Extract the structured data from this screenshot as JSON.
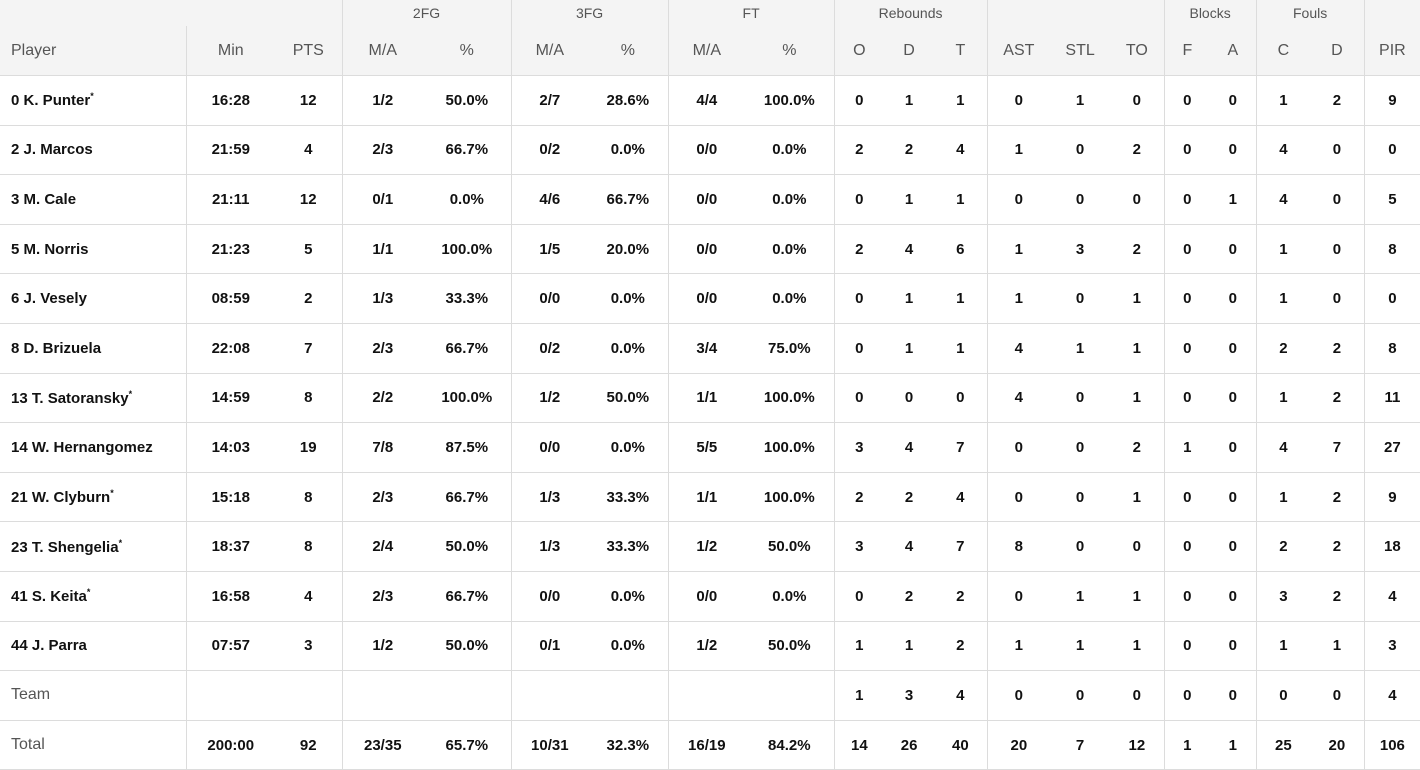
{
  "header": {
    "groups": [
      {
        "label": "",
        "span": 3
      },
      {
        "label": "2FG",
        "span": 2
      },
      {
        "label": "3FG",
        "span": 2
      },
      {
        "label": "FT",
        "span": 2
      },
      {
        "label": "Rebounds",
        "span": 3
      },
      {
        "label": "",
        "span": 3
      },
      {
        "label": "Blocks",
        "span": 2
      },
      {
        "label": "Fouls",
        "span": 2
      },
      {
        "label": "",
        "span": 1
      }
    ],
    "columns": [
      "Player",
      "Min",
      "PTS",
      "M/A",
      "%",
      "M/A",
      "%",
      "M/A",
      "%",
      "O",
      "D",
      "T",
      "AST",
      "STL",
      "TO",
      "F",
      "A",
      "C",
      "D",
      "PIR"
    ]
  },
  "rows": [
    {
      "number": "0",
      "name": "K. Punter",
      "starter": true,
      "stats": [
        "16:28",
        "12",
        "1/2",
        "50.0%",
        "2/7",
        "28.6%",
        "4/4",
        "100.0%",
        "0",
        "1",
        "1",
        "0",
        "1",
        "0",
        "0",
        "0",
        "1",
        "2",
        "9"
      ]
    },
    {
      "number": "2",
      "name": "J. Marcos",
      "starter": false,
      "stats": [
        "21:59",
        "4",
        "2/3",
        "66.7%",
        "0/2",
        "0.0%",
        "0/0",
        "0.0%",
        "2",
        "2",
        "4",
        "1",
        "0",
        "2",
        "0",
        "0",
        "4",
        "0",
        "0"
      ]
    },
    {
      "number": "3",
      "name": "M. Cale",
      "starter": false,
      "stats": [
        "21:11",
        "12",
        "0/1",
        "0.0%",
        "4/6",
        "66.7%",
        "0/0",
        "0.0%",
        "0",
        "1",
        "1",
        "0",
        "0",
        "0",
        "0",
        "1",
        "4",
        "0",
        "5"
      ]
    },
    {
      "number": "5",
      "name": "M. Norris",
      "starter": false,
      "stats": [
        "21:23",
        "5",
        "1/1",
        "100.0%",
        "1/5",
        "20.0%",
        "0/0",
        "0.0%",
        "2",
        "4",
        "6",
        "1",
        "3",
        "2",
        "0",
        "0",
        "1",
        "0",
        "8"
      ]
    },
    {
      "number": "6",
      "name": "J. Vesely",
      "starter": false,
      "stats": [
        "08:59",
        "2",
        "1/3",
        "33.3%",
        "0/0",
        "0.0%",
        "0/0",
        "0.0%",
        "0",
        "1",
        "1",
        "1",
        "0",
        "1",
        "0",
        "0",
        "1",
        "0",
        "0"
      ]
    },
    {
      "number": "8",
      "name": "D. Brizuela",
      "starter": false,
      "stats": [
        "22:08",
        "7",
        "2/3",
        "66.7%",
        "0/2",
        "0.0%",
        "3/4",
        "75.0%",
        "0",
        "1",
        "1",
        "4",
        "1",
        "1",
        "0",
        "0",
        "2",
        "2",
        "8"
      ]
    },
    {
      "number": "13",
      "name": "T. Satoransky",
      "starter": true,
      "stats": [
        "14:59",
        "8",
        "2/2",
        "100.0%",
        "1/2",
        "50.0%",
        "1/1",
        "100.0%",
        "0",
        "0",
        "0",
        "4",
        "0",
        "1",
        "0",
        "0",
        "1",
        "2",
        "11"
      ]
    },
    {
      "number": "14",
      "name": "W. Hernangomez",
      "starter": false,
      "stats": [
        "14:03",
        "19",
        "7/8",
        "87.5%",
        "0/0",
        "0.0%",
        "5/5",
        "100.0%",
        "3",
        "4",
        "7",
        "0",
        "0",
        "2",
        "1",
        "0",
        "4",
        "7",
        "27"
      ]
    },
    {
      "number": "21",
      "name": "W. Clyburn",
      "starter": true,
      "stats": [
        "15:18",
        "8",
        "2/3",
        "66.7%",
        "1/3",
        "33.3%",
        "1/1",
        "100.0%",
        "2",
        "2",
        "4",
        "0",
        "0",
        "1",
        "0",
        "0",
        "1",
        "2",
        "9"
      ]
    },
    {
      "number": "23",
      "name": "T. Shengelia",
      "starter": true,
      "stats": [
        "18:37",
        "8",
        "2/4",
        "50.0%",
        "1/3",
        "33.3%",
        "1/2",
        "50.0%",
        "3",
        "4",
        "7",
        "8",
        "0",
        "0",
        "0",
        "0",
        "2",
        "2",
        "18"
      ]
    },
    {
      "number": "41",
      "name": "S. Keita",
      "starter": true,
      "stats": [
        "16:58",
        "4",
        "2/3",
        "66.7%",
        "0/0",
        "0.0%",
        "0/0",
        "0.0%",
        "0",
        "2",
        "2",
        "0",
        "1",
        "1",
        "0",
        "0",
        "3",
        "2",
        "4"
      ]
    },
    {
      "number": "44",
      "name": "J. Parra",
      "starter": false,
      "stats": [
        "07:57",
        "3",
        "1/2",
        "50.0%",
        "0/1",
        "0.0%",
        "1/2",
        "50.0%",
        "1",
        "1",
        "2",
        "1",
        "1",
        "1",
        "0",
        "0",
        "1",
        "1",
        "3"
      ]
    },
    {
      "number": "",
      "name": "Team",
      "starter": false,
      "plain": true,
      "stats": [
        "",
        "",
        "",
        "",
        "",
        "",
        "",
        "",
        "1",
        "3",
        "4",
        "0",
        "0",
        "0",
        "0",
        "0",
        "0",
        "0",
        "4"
      ]
    },
    {
      "number": "",
      "name": "Total",
      "starter": false,
      "plain": true,
      "stats": [
        "200:00",
        "92",
        "23/35",
        "65.7%",
        "10/31",
        "32.3%",
        "16/19",
        "84.2%",
        "14",
        "26",
        "40",
        "20",
        "7",
        "12",
        "1",
        "1",
        "25",
        "20",
        "106"
      ]
    }
  ],
  "starter_mark": "*"
}
